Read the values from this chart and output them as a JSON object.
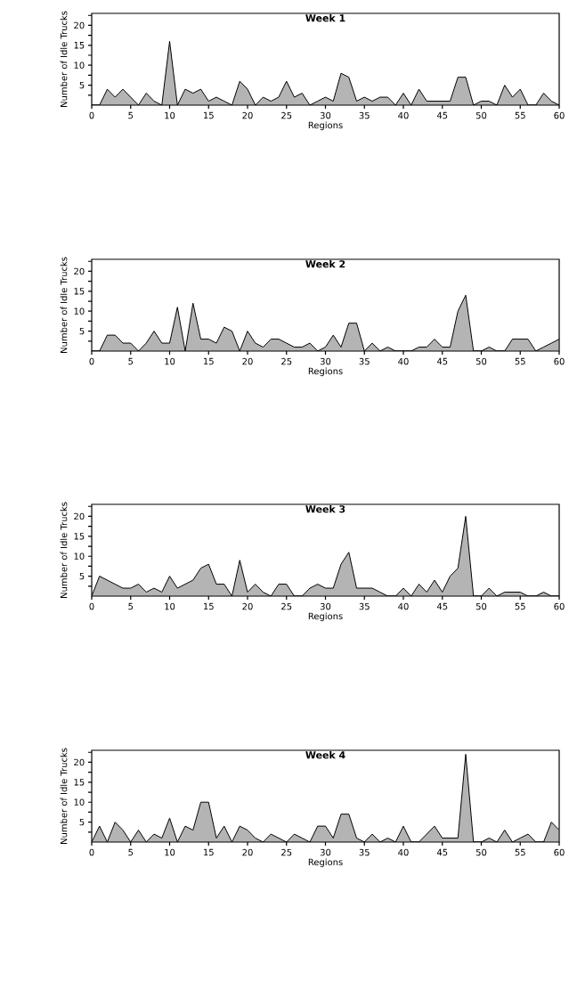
{
  "chart_data": [
    {
      "type": "area",
      "title": "Week 1",
      "xlabel": "Regions",
      "ylabel": "Number of Idle Trucks",
      "color": "#b4b4b4",
      "xlim": [
        0,
        60
      ],
      "ylim": [
        0,
        23
      ],
      "xticks": [
        0,
        5,
        10,
        15,
        20,
        25,
        30,
        35,
        40,
        45,
        50,
        55,
        60
      ],
      "yticks": [
        {
          "value": 2.5,
          "label": null
        },
        5,
        {
          "value": 7.5,
          "label": null
        },
        10,
        {
          "value": 12.5,
          "label": null
        },
        15,
        {
          "value": 17.5,
          "label": null
        },
        20,
        {
          "value": 22.5,
          "label": null
        }
      ],
      "x": [
        0,
        1,
        2,
        3,
        4,
        5,
        6,
        7,
        8,
        9,
        10,
        11,
        12,
        13,
        14,
        15,
        16,
        17,
        18,
        19,
        20,
        21,
        22,
        23,
        24,
        25,
        26,
        27,
        28,
        29,
        30,
        31,
        32,
        33,
        34,
        35,
        36,
        37,
        38,
        39,
        40,
        41,
        42,
        43,
        44,
        45,
        46,
        47,
        48,
        49,
        50,
        51,
        52,
        53,
        54,
        55,
        56,
        57,
        58,
        59,
        60
      ],
      "values": [
        0,
        0,
        4,
        2,
        4,
        2,
        0,
        3,
        1,
        0,
        16,
        0,
        4,
        3,
        4,
        1,
        2,
        1,
        0,
        6,
        4,
        0,
        2,
        1,
        2,
        6,
        2,
        3,
        0,
        1,
        2,
        1,
        8,
        7,
        1,
        2,
        1,
        2,
        2,
        0,
        3,
        0,
        4,
        1,
        1,
        1,
        1,
        7,
        7,
        0,
        1,
        1,
        0,
        5,
        2,
        4,
        0,
        0,
        3,
        1,
        0
      ]
    },
    {
      "type": "area",
      "title": "Week 2",
      "xlabel": "Regions",
      "ylabel": "Number of Idle Trucks",
      "color": "#b4b4b4",
      "xlim": [
        0,
        60
      ],
      "ylim": [
        0,
        23
      ],
      "xticks": [
        0,
        5,
        10,
        15,
        20,
        25,
        30,
        35,
        40,
        45,
        50,
        55,
        60
      ],
      "yticks": [
        {
          "value": 2.5,
          "label": null
        },
        5,
        {
          "value": 7.5,
          "label": null
        },
        10,
        {
          "value": 12.5,
          "label": null
        },
        15,
        {
          "value": 17.5,
          "label": null
        },
        20,
        {
          "value": 22.5,
          "label": null
        }
      ],
      "x": [
        0,
        1,
        2,
        3,
        4,
        5,
        6,
        7,
        8,
        9,
        10,
        11,
        12,
        13,
        14,
        15,
        16,
        17,
        18,
        19,
        20,
        21,
        22,
        23,
        24,
        25,
        26,
        27,
        28,
        29,
        30,
        31,
        32,
        33,
        34,
        35,
        36,
        37,
        38,
        39,
        40,
        41,
        42,
        43,
        44,
        45,
        46,
        47,
        48,
        49,
        50,
        51,
        52,
        53,
        54,
        55,
        56,
        57,
        58,
        59,
        60
      ],
      "values": [
        0,
        0,
        4,
        4,
        2,
        2,
        0,
        2,
        5,
        2,
        2,
        11,
        0,
        12,
        3,
        3,
        2,
        6,
        5,
        0,
        5,
        2,
        1,
        3,
        3,
        2,
        1,
        1,
        2,
        0,
        1,
        4,
        1,
        7,
        7,
        0,
        2,
        0,
        1,
        0,
        0,
        0,
        1,
        1,
        3,
        1,
        1,
        10,
        14,
        0,
        0,
        1,
        0,
        0,
        3,
        3,
        3,
        0,
        1,
        2,
        3
      ]
    },
    {
      "type": "area",
      "title": "Week 3",
      "xlabel": "Regions",
      "ylabel": "Number of Idle Trucks",
      "color": "#b4b4b4",
      "xlim": [
        0,
        60
      ],
      "ylim": [
        0,
        23
      ],
      "xticks": [
        0,
        5,
        10,
        15,
        20,
        25,
        30,
        35,
        40,
        45,
        50,
        55,
        60
      ],
      "yticks": [
        {
          "value": 2.5,
          "label": null
        },
        5,
        {
          "value": 7.5,
          "label": null
        },
        10,
        {
          "value": 12.5,
          "label": null
        },
        15,
        {
          "value": 17.5,
          "label": null
        },
        20,
        {
          "value": 22.5,
          "label": null
        }
      ],
      "x": [
        0,
        1,
        2,
        3,
        4,
        5,
        6,
        7,
        8,
        9,
        10,
        11,
        12,
        13,
        14,
        15,
        16,
        17,
        18,
        19,
        20,
        21,
        22,
        23,
        24,
        25,
        26,
        27,
        28,
        29,
        30,
        31,
        32,
        33,
        34,
        35,
        36,
        37,
        38,
        39,
        40,
        41,
        42,
        43,
        44,
        45,
        46,
        47,
        48,
        49,
        50,
        51,
        52,
        53,
        54,
        55,
        56,
        57,
        58,
        59,
        60
      ],
      "values": [
        0,
        5,
        4,
        3,
        2,
        2,
        3,
        1,
        2,
        1,
        5,
        2,
        3,
        4,
        7,
        8,
        3,
        3,
        0,
        9,
        1,
        3,
        1,
        0,
        3,
        3,
        0,
        0,
        2,
        3,
        2,
        2,
        8,
        11,
        2,
        2,
        2,
        1,
        0,
        0,
        2,
        0,
        3,
        1,
        4,
        1,
        5,
        7,
        20,
        0,
        0,
        2,
        0,
        1,
        1,
        1,
        0,
        0,
        1,
        0,
        0
      ]
    },
    {
      "type": "area",
      "title": "Week 4",
      "xlabel": "Regions",
      "ylabel": "Number of Idle Trucks",
      "color": "#b4b4b4",
      "xlim": [
        0,
        60
      ],
      "ylim": [
        0,
        23
      ],
      "xticks": [
        0,
        5,
        10,
        15,
        20,
        25,
        30,
        35,
        40,
        45,
        50,
        55,
        60
      ],
      "yticks": [
        {
          "value": 2.5,
          "label": null
        },
        5,
        {
          "value": 7.5,
          "label": null
        },
        10,
        {
          "value": 12.5,
          "label": null
        },
        15,
        {
          "value": 17.5,
          "label": null
        },
        20,
        {
          "value": 22.5,
          "label": null
        }
      ],
      "x": [
        0,
        1,
        2,
        3,
        4,
        5,
        6,
        7,
        8,
        9,
        10,
        11,
        12,
        13,
        14,
        15,
        16,
        17,
        18,
        19,
        20,
        21,
        22,
        23,
        24,
        25,
        26,
        27,
        28,
        29,
        30,
        31,
        32,
        33,
        34,
        35,
        36,
        37,
        38,
        39,
        40,
        41,
        42,
        43,
        44,
        45,
        46,
        47,
        48,
        49,
        50,
        51,
        52,
        53,
        54,
        55,
        56,
        57,
        58,
        59,
        60
      ],
      "values": [
        0,
        4,
        0,
        5,
        3,
        0,
        3,
        0,
        2,
        1,
        6,
        0,
        4,
        3,
        10,
        10,
        1,
        4,
        0,
        4,
        3,
        1,
        0,
        2,
        1,
        0,
        2,
        1,
        0,
        4,
        4,
        1,
        7,
        7,
        1,
        0,
        2,
        0,
        1,
        0,
        4,
        0,
        0,
        2,
        4,
        1,
        1,
        1,
        22,
        0,
        0,
        1,
        0,
        3,
        0,
        1,
        2,
        0,
        0,
        5,
        3
      ]
    }
  ]
}
